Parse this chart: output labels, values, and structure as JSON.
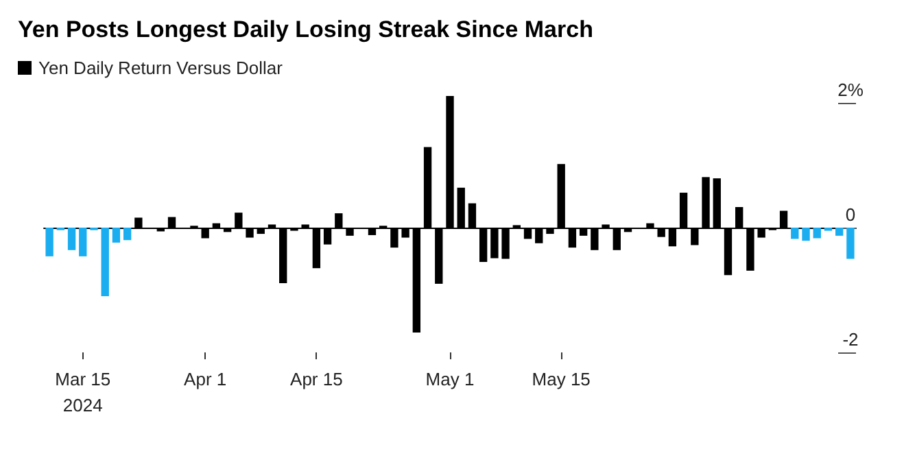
{
  "chart_data": {
    "type": "bar",
    "title": "Yen Posts Longest Daily Losing Streak Since March",
    "categories": [
      null,
      null,
      null,
      "Mar 15\n2024",
      null,
      null,
      null,
      null,
      null,
      null,
      null,
      null,
      null,
      null,
      "Apr 1",
      null,
      null,
      null,
      null,
      null,
      null,
      null,
      null,
      null,
      "Apr 15",
      null,
      null,
      null,
      null,
      null,
      null,
      null,
      null,
      null,
      null,
      null,
      "May 1",
      null,
      null,
      null,
      null,
      null,
      null,
      null,
      null,
      null,
      "May 15",
      null,
      null,
      null,
      null,
      null,
      null,
      null,
      null,
      null,
      null,
      null,
      null,
      null,
      null,
      null,
      null,
      null,
      null,
      null,
      null,
      null,
      null,
      null,
      null,
      null,
      null
    ],
    "series": [
      {
        "name": "Yen Daily Return Versus Dollar",
        "color": "#000000",
        "values": [
          -0.46,
          -0.04,
          -0.36,
          -0.46,
          -0.04,
          -1.1,
          -0.24,
          -0.2,
          0.16,
          0,
          -0.06,
          0.17,
          -0.01,
          0.03,
          -0.17,
          0.07,
          -0.07,
          0.24,
          -0.16,
          -0.1,
          0.05,
          -0.89,
          -0.05,
          0.05,
          -0.65,
          -0.27,
          0.23,
          -0.13,
          0,
          -0.12,
          0.03,
          -0.32,
          -0.16,
          -1.68,
          1.29,
          -0.9,
          2.11,
          0.64,
          0.39,
          -0.55,
          -0.49,
          -0.5,
          0.04,
          -0.18,
          -0.25,
          -0.1,
          1.02,
          -0.32,
          -0.13,
          -0.36,
          0.05,
          -0.36,
          -0.07,
          -0.02,
          0.07,
          -0.15,
          -0.3,
          0.56,
          -0.28,
          0.81,
          0.79,
          -0.76,
          0.33,
          -0.69,
          -0.16,
          -0.04,
          0.27,
          -0.18,
          -0.21,
          -0.17,
          -0.05,
          -0.13,
          -0.5
        ],
        "colors": [
          "#1aadf0",
          "#1aadf0",
          "#1aadf0",
          "#1aadf0",
          "#1aadf0",
          "#1aadf0",
          "#1aadf0",
          "#1aadf0",
          "#000000",
          "#000000",
          "#000000",
          "#000000",
          "#000000",
          "#000000",
          "#000000",
          "#000000",
          "#000000",
          "#000000",
          "#000000",
          "#000000",
          "#000000",
          "#000000",
          "#000000",
          "#000000",
          "#000000",
          "#000000",
          "#000000",
          "#000000",
          "#000000",
          "#000000",
          "#000000",
          "#000000",
          "#000000",
          "#000000",
          "#000000",
          "#000000",
          "#000000",
          "#000000",
          "#000000",
          "#000000",
          "#000000",
          "#000000",
          "#000000",
          "#000000",
          "#000000",
          "#000000",
          "#000000",
          "#000000",
          "#000000",
          "#000000",
          "#000000",
          "#000000",
          "#000000",
          "#000000",
          "#000000",
          "#000000",
          "#000000",
          "#000000",
          "#000000",
          "#000000",
          "#000000",
          "#000000",
          "#000000",
          "#000000",
          "#000000",
          "#000000",
          "#000000",
          "#1aadf0",
          "#1aadf0",
          "#1aadf0",
          "#1aadf0",
          "#1aadf0",
          "#1aadf0"
        ]
      }
    ],
    "ylim": [
      -2,
      2.11
    ],
    "yticks": [
      {
        "value": 2,
        "label": "2%"
      },
      0,
      -2
    ],
    "grid": "y",
    "legend": "top left"
  }
}
